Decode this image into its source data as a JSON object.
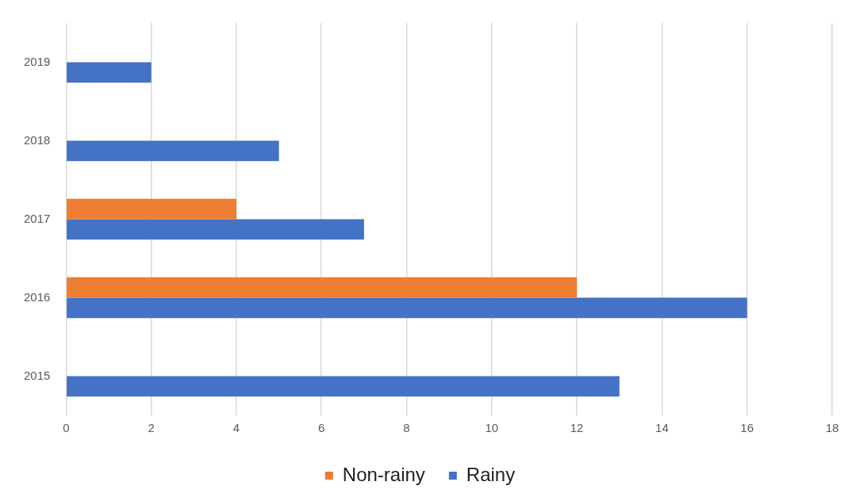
{
  "chart_data": {
    "type": "bar",
    "orientation": "horizontal",
    "categories": [
      "2019",
      "2018",
      "2017",
      "2016",
      "2015"
    ],
    "series": [
      {
        "name": "Non-rainy",
        "color": "#ed7d31",
        "values": [
          null,
          null,
          4,
          12,
          null
        ]
      },
      {
        "name": "Rainy",
        "color": "#4472c4",
        "values": [
          2,
          5,
          7,
          16,
          13
        ]
      }
    ],
    "xlim": [
      0,
      18
    ],
    "xticks": [
      0,
      2,
      4,
      6,
      8,
      10,
      12,
      14,
      16,
      18
    ],
    "grid": "x",
    "legend": "bottom"
  }
}
